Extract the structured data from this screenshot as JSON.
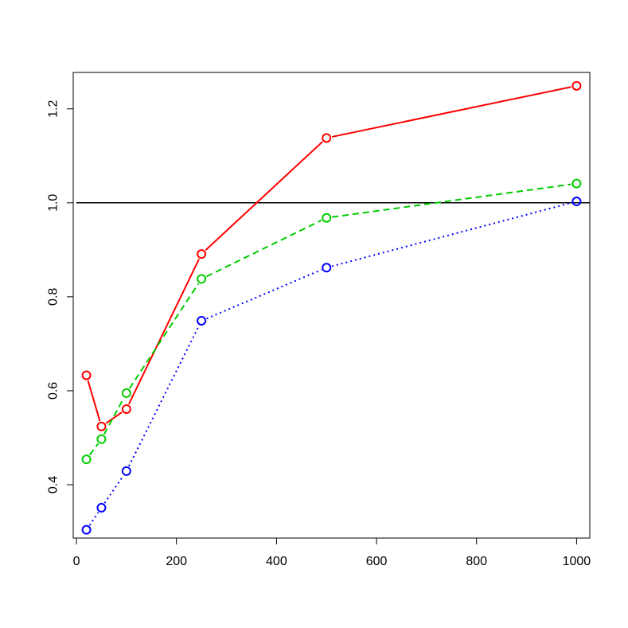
{
  "chart_data": {
    "type": "line",
    "title": "",
    "xlabel": "",
    "ylabel": "",
    "xlim": [
      -6.4,
      1026.4
    ],
    "ylim": [
      0.2865,
      1.2775
    ],
    "x_ticks": [
      0,
      200,
      400,
      600,
      800,
      1000
    ],
    "y_ticks": [
      0.4,
      0.6,
      0.8,
      1.0,
      1.2
    ],
    "x_tick_labels": [
      "0",
      "200",
      "400",
      "600",
      "800",
      "1000"
    ],
    "y_tick_labels": [
      "0.4",
      "0.6",
      "0.8",
      "1.0",
      "1.2"
    ],
    "reference_line": {
      "y": 1.0,
      "color": "#000000"
    },
    "grid": false,
    "x": [
      20,
      50,
      100,
      250,
      500,
      1000
    ],
    "series": [
      {
        "values": [
          0.633,
          0.524,
          0.561,
          0.891,
          1.138,
          1.249
        ],
        "color": "#ff0000",
        "line_style": "solid",
        "marker": "open-circle"
      },
      {
        "values": [
          0.454,
          0.497,
          0.595,
          0.838,
          0.968,
          1.041
        ],
        "color": "#00cd00",
        "line_style": "dashed",
        "marker": "open-circle"
      },
      {
        "values": [
          0.304,
          0.351,
          0.429,
          0.749,
          0.862,
          1.003
        ],
        "color": "#0000ff",
        "line_style": "dotted",
        "marker": "open-circle"
      }
    ]
  }
}
